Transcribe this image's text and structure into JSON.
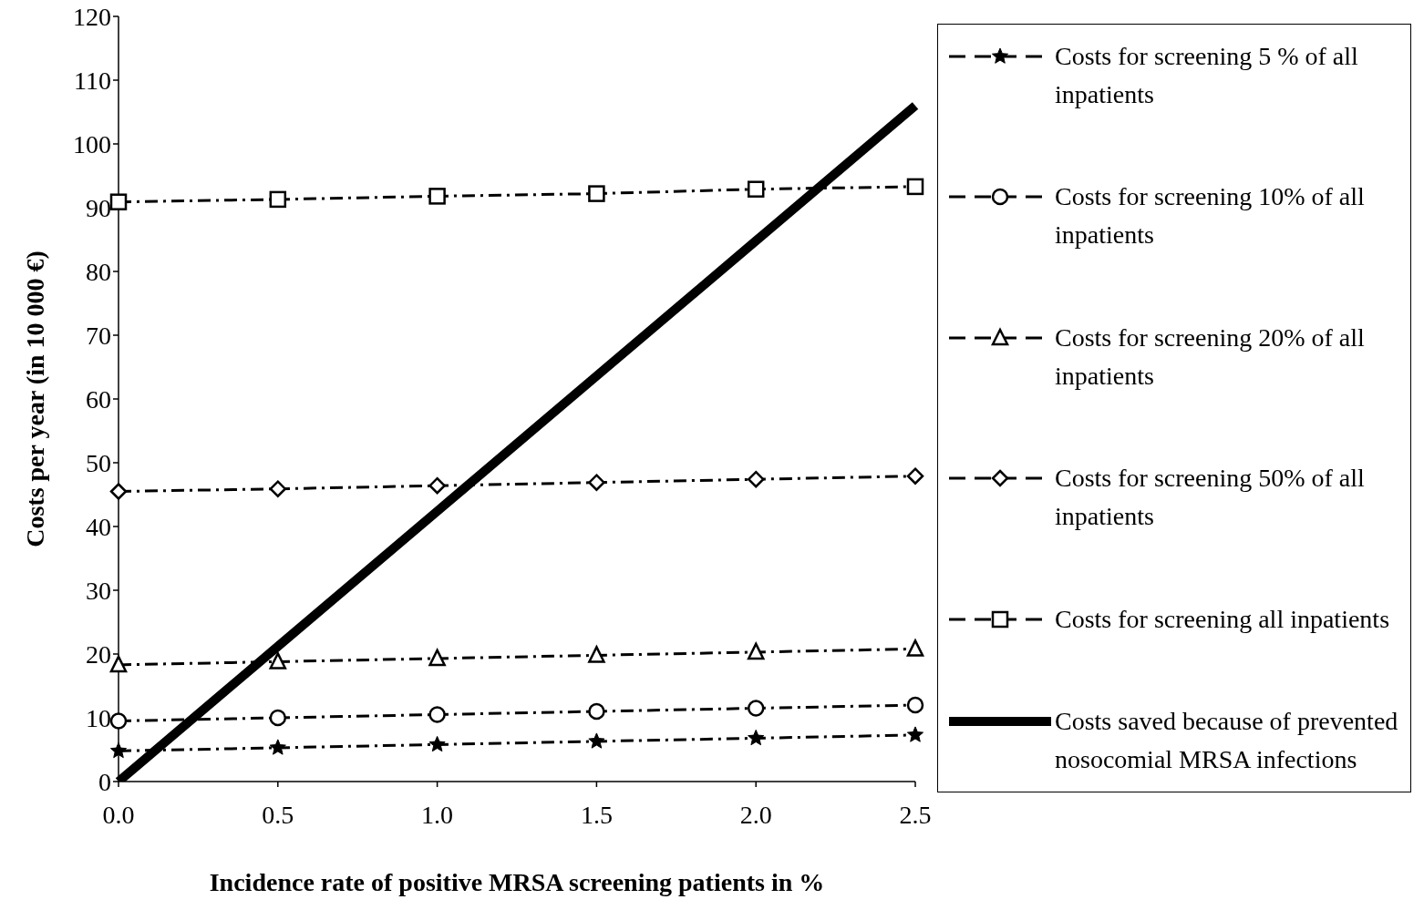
{
  "chart_data": {
    "type": "line",
    "xlabel": "Incidence rate of positive MRSA screening patients in %",
    "ylabel": "Costs per year (in 10 000 €)",
    "categories": [
      "0.0",
      "0.5",
      "1.0",
      "1.5",
      "2.0",
      "2.5"
    ],
    "series": [
      {
        "name": "Costs for screening 5 % of all inpatients",
        "color": "#000000",
        "marker": "star",
        "line_style": "dashed",
        "values": [
          4.8,
          5.3,
          5.8,
          6.3,
          6.8,
          7.3
        ]
      },
      {
        "name": "Costs for screening 10% of all inpatients",
        "color": "#000000",
        "marker": "circle",
        "line_style": "dashed",
        "values": [
          9.5,
          10,
          10.5,
          11,
          11.5,
          12
        ]
      },
      {
        "name": "Costs for screening 20% of all inpatients",
        "color": "#000000",
        "marker": "triangle",
        "line_style": "dashed",
        "values": [
          18.3,
          18.8,
          19.3,
          19.8,
          20.3,
          20.8
        ]
      },
      {
        "name": "Costs for screening 50% of all inpatients",
        "color": "#000000",
        "marker": "diamond",
        "line_style": "dashed",
        "values": [
          45.5,
          45.9,
          46.4,
          46.9,
          47.4,
          47.9
        ]
      },
      {
        "name": "Costs for screening all inpatients",
        "color": "#000000",
        "marker": "square",
        "line_style": "dashed",
        "values": [
          90.9,
          91.3,
          91.8,
          92.2,
          92.9,
          93.3
        ]
      },
      {
        "name": "Costs saved because of prevented nosocomial MRSA infections",
        "color": "#000000",
        "marker": "none",
        "line_style": "solid",
        "values": [
          0,
          21.2,
          42.4,
          63.6,
          84.8,
          106
        ]
      }
    ],
    "ylim": [
      0,
      120
    ],
    "yticks": [
      0,
      10,
      20,
      30,
      40,
      50,
      60,
      70,
      80,
      90,
      100,
      110,
      120
    ],
    "grid": false,
    "legend": "right"
  }
}
